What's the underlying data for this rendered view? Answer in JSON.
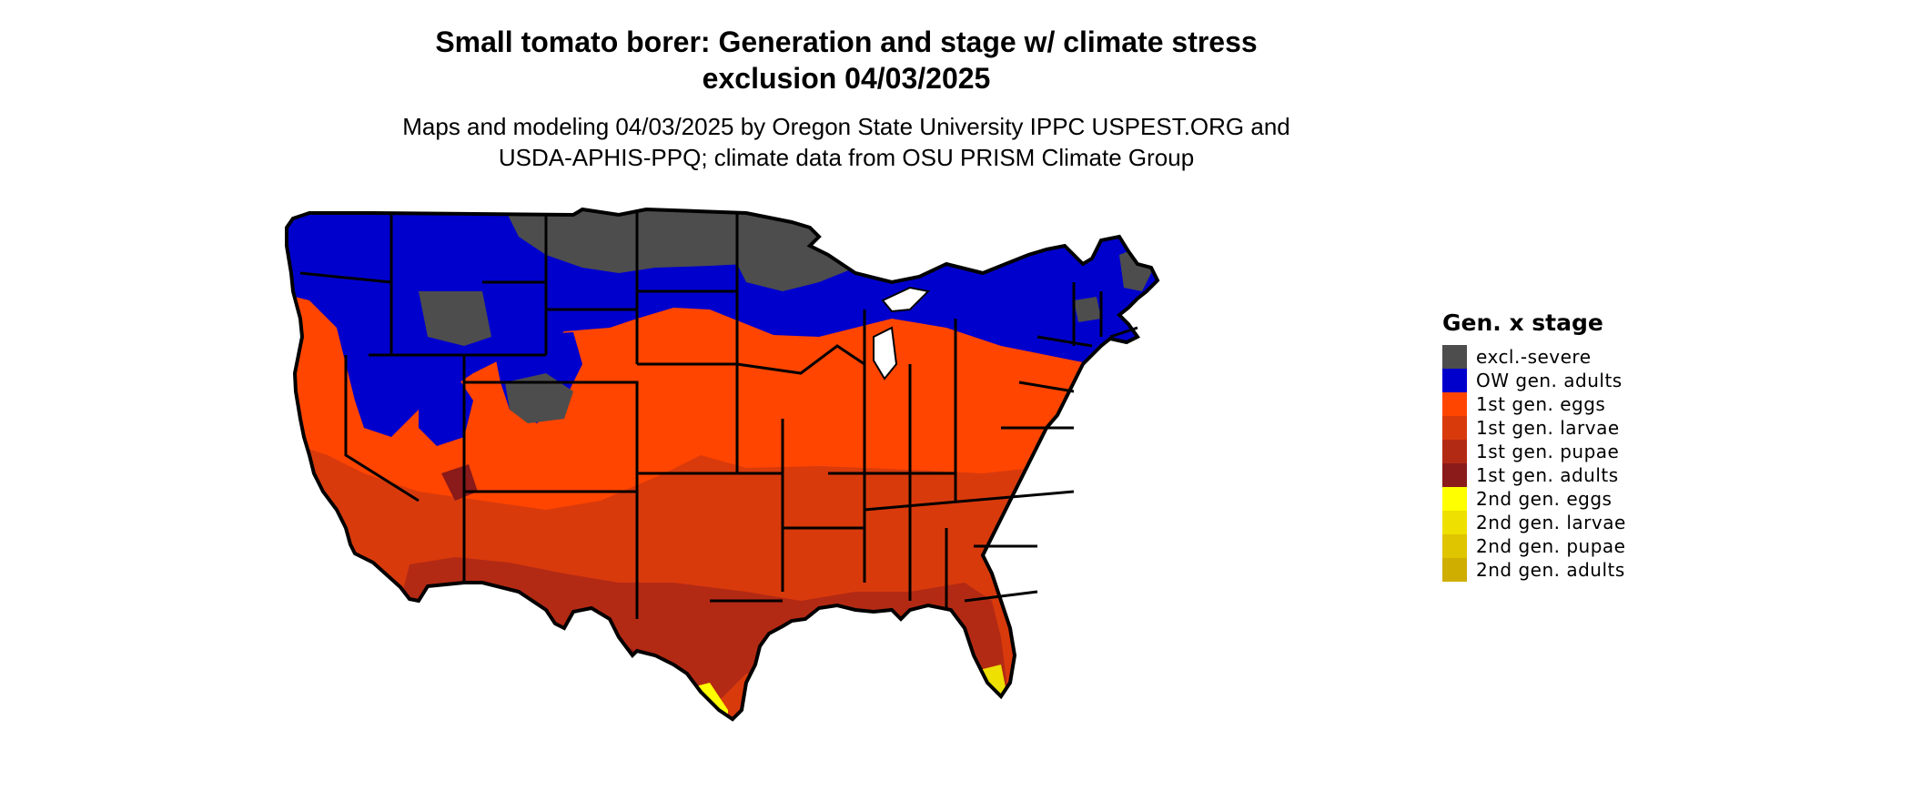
{
  "title": {
    "line1": "Small tomato borer: Generation and stage w/ climate stress",
    "line2": "exclusion 04/03/2025"
  },
  "subtitle": {
    "line1": "Maps and modeling 04/03/2025 by Oregon State University IPPC USPEST.ORG and",
    "line2": "USDA-APHIS-PPQ; climate data from OSU PRISM Climate Group"
  },
  "legend": {
    "title": "Gen. x stage",
    "items": [
      {
        "label": "excl.-severe",
        "color": "#4d4d4d"
      },
      {
        "label": "OW gen. adults",
        "color": "#0000cd"
      },
      {
        "label": "1st gen. eggs",
        "color": "#ff4500"
      },
      {
        "label": "1st gen. larvae",
        "color": "#d93a0c"
      },
      {
        "label": "1st gen. pupae",
        "color": "#b32a14"
      },
      {
        "label": "1st gen. adults",
        "color": "#8b1a1a"
      },
      {
        "label": "2nd gen. eggs",
        "color": "#ffff00"
      },
      {
        "label": "2nd gen. larvae",
        "color": "#eee000"
      },
      {
        "label": "2nd gen. pupae",
        "color": "#dfc400"
      },
      {
        "label": "2nd gen. adults",
        "color": "#cfae00"
      }
    ]
  }
}
